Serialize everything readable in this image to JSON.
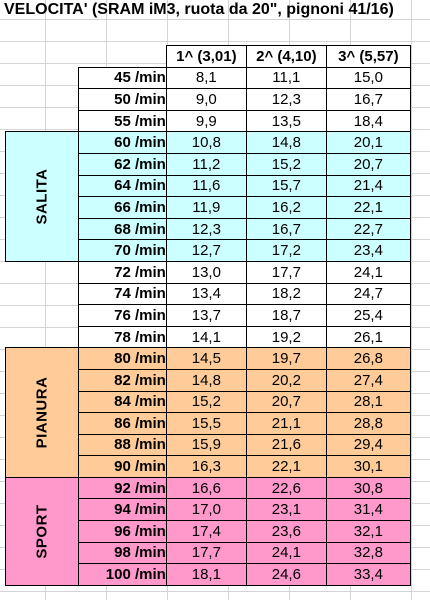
{
  "title": "VELOCITA' (SRAM iM3, ruota da 20\", pignoni 41/16)",
  "headers": [
    "1^ (3,01)",
    "2^ (4,10)",
    "3^ (5,57)"
  ],
  "unit": "/min",
  "zones": [
    {
      "label": "SALITA",
      "color": "#ccffff",
      "start": 3,
      "span": 6
    },
    {
      "label": "PIANURA",
      "color": "#ffcc99",
      "start": 13,
      "span": 6
    },
    {
      "label": "SPORT",
      "color": "#ff99cc",
      "start": 19,
      "span": 5
    }
  ],
  "rows": [
    {
      "cadence": "45",
      "values": [
        "8,1",
        "11,1",
        "15,0"
      ]
    },
    {
      "cadence": "50",
      "values": [
        "9,0",
        "12,3",
        "16,7"
      ]
    },
    {
      "cadence": "55",
      "values": [
        "9,9",
        "13,5",
        "18,4"
      ]
    },
    {
      "cadence": "60",
      "values": [
        "10,8",
        "14,8",
        "20,1"
      ]
    },
    {
      "cadence": "62",
      "values": [
        "11,2",
        "15,2",
        "20,7"
      ]
    },
    {
      "cadence": "64",
      "values": [
        "11,6",
        "15,7",
        "21,4"
      ]
    },
    {
      "cadence": "66",
      "values": [
        "11,9",
        "16,2",
        "22,1"
      ]
    },
    {
      "cadence": "68",
      "values": [
        "12,3",
        "16,7",
        "22,7"
      ]
    },
    {
      "cadence": "70",
      "values": [
        "12,7",
        "17,2",
        "23,4"
      ]
    },
    {
      "cadence": "72",
      "values": [
        "13,0",
        "17,7",
        "24,1"
      ]
    },
    {
      "cadence": "74",
      "values": [
        "13,4",
        "18,2",
        "24,7"
      ]
    },
    {
      "cadence": "76",
      "values": [
        "13,7",
        "18,7",
        "25,4"
      ]
    },
    {
      "cadence": "78",
      "values": [
        "14,1",
        "19,2",
        "26,1"
      ]
    },
    {
      "cadence": "80",
      "values": [
        "14,5",
        "19,7",
        "26,8"
      ]
    },
    {
      "cadence": "82",
      "values": [
        "14,8",
        "20,2",
        "27,4"
      ]
    },
    {
      "cadence": "84",
      "values": [
        "15,2",
        "20,7",
        "28,1"
      ]
    },
    {
      "cadence": "86",
      "values": [
        "15,5",
        "21,1",
        "28,8"
      ]
    },
    {
      "cadence": "88",
      "values": [
        "15,9",
        "21,6",
        "29,4"
      ]
    },
    {
      "cadence": "90",
      "values": [
        "16,3",
        "22,1",
        "30,1"
      ]
    },
    {
      "cadence": "92",
      "values": [
        "16,6",
        "22,6",
        "30,8"
      ]
    },
    {
      "cadence": "94",
      "values": [
        "17,0",
        "23,1",
        "31,4"
      ]
    },
    {
      "cadence": "96",
      "values": [
        "17,4",
        "23,6",
        "32,1"
      ]
    },
    {
      "cadence": "98",
      "values": [
        "17,7",
        "24,1",
        "32,8"
      ]
    },
    {
      "cadence": "100",
      "values": [
        "18,1",
        "24,6",
        "33,4"
      ]
    }
  ]
}
